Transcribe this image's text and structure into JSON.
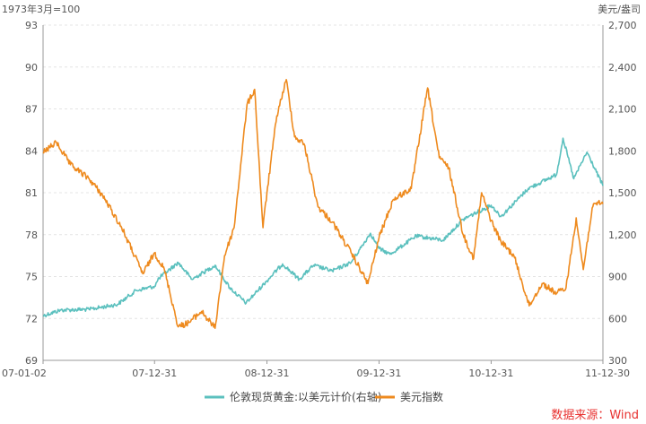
{
  "chart_data": {
    "type": "line",
    "title": "",
    "left_axis_unit": "1973年3月=100",
    "right_axis_unit": "美元/盎司",
    "x_ticks": [
      "07-01-02",
      "07-12-31",
      "08-12-31",
      "09-12-31",
      "10-12-31",
      "11-12-30"
    ],
    "left_ylim": [
      69,
      93
    ],
    "left_ticks": [
      "69",
      "72",
      "75",
      "78",
      "81",
      "84",
      "87",
      "90",
      "93"
    ],
    "right_ylim": [
      300,
      2700
    ],
    "right_ticks": [
      "300",
      "600",
      "900",
      "1,200",
      "1,500",
      "1,800",
      "2,100",
      "2,400",
      "2,700"
    ],
    "grid": true,
    "legend_position": "bottom-center",
    "series": [
      {
        "name": "伦敦现货黄金:以美元计价(右轴)",
        "axis": "right",
        "color": "#5bc0be",
        "points": [
          [
            "2007-01-02",
            620
          ],
          [
            "2007-03-01",
            660
          ],
          [
            "2007-06-01",
            665
          ],
          [
            "2007-09-01",
            700
          ],
          [
            "2007-11-01",
            800
          ],
          [
            "2007-12-31",
            830
          ],
          [
            "2008-01-15",
            890
          ],
          [
            "2008-03-17",
            1000
          ],
          [
            "2008-05-01",
            880
          ],
          [
            "2008-07-15",
            980
          ],
          [
            "2008-09-01",
            820
          ],
          [
            "2008-10-24",
            710
          ],
          [
            "2008-12-31",
            870
          ],
          [
            "2009-02-20",
            990
          ],
          [
            "2009-04-15",
            880
          ],
          [
            "2009-06-01",
            980
          ],
          [
            "2009-08-01",
            940
          ],
          [
            "2009-10-01",
            1000
          ],
          [
            "2009-12-03",
            1210
          ],
          [
            "2009-12-31",
            1100
          ],
          [
            "2010-02-05",
            1060
          ],
          [
            "2010-05-01",
            1190
          ],
          [
            "2010-07-28",
            1160
          ],
          [
            "2010-10-01",
            1310
          ],
          [
            "2010-12-31",
            1410
          ],
          [
            "2011-02-01",
            1330
          ],
          [
            "2011-05-01",
            1530
          ],
          [
            "2011-08-01",
            1630
          ],
          [
            "2011-08-22",
            1890
          ],
          [
            "2011-09-26",
            1600
          ],
          [
            "2011-11-08",
            1790
          ],
          [
            "2011-12-30",
            1550
          ]
        ]
      },
      {
        "name": "美元指数",
        "axis": "left",
        "color": "#ee8a1e",
        "points": [
          [
            "2007-01-02",
            83.9
          ],
          [
            "2007-02-15",
            84.6
          ],
          [
            "2007-04-01",
            83.0
          ],
          [
            "2007-06-01",
            82.0
          ],
          [
            "2007-07-15",
            80.8
          ],
          [
            "2007-09-15",
            78.5
          ],
          [
            "2007-11-23",
            75.2
          ],
          [
            "2007-12-31",
            76.7
          ],
          [
            "2008-02-01",
            75.5
          ],
          [
            "2008-03-17",
            71.4
          ],
          [
            "2008-04-20",
            71.7
          ],
          [
            "2008-06-01",
            72.5
          ],
          [
            "2008-07-15",
            71.3
          ],
          [
            "2008-08-15",
            76.5
          ],
          [
            "2008-09-15",
            78.5
          ],
          [
            "2008-10-27",
            87.3
          ],
          [
            "2008-11-21",
            88.4
          ],
          [
            "2008-12-18",
            78.5
          ],
          [
            "2008-12-31",
            81.0
          ],
          [
            "2009-02-01",
            86.5
          ],
          [
            "2009-03-04",
            89.1
          ],
          [
            "2009-03-31",
            85.0
          ],
          [
            "2009-05-01",
            84.5
          ],
          [
            "2009-06-15",
            80.0
          ],
          [
            "2009-08-01",
            78.9
          ],
          [
            "2009-10-01",
            76.7
          ],
          [
            "2009-11-25",
            74.5
          ],
          [
            "2009-12-31",
            77.8
          ],
          [
            "2010-02-15",
            80.5
          ],
          [
            "2010-04-15",
            81.3
          ],
          [
            "2010-06-07",
            88.5
          ],
          [
            "2010-07-15",
            83.5
          ],
          [
            "2010-08-15",
            82.8
          ],
          [
            "2010-10-01",
            78.0
          ],
          [
            "2010-11-04",
            76.3
          ],
          [
            "2010-11-30",
            81.0
          ],
          [
            "2010-12-31",
            79.0
          ],
          [
            "2011-02-01",
            77.5
          ],
          [
            "2011-03-15",
            76.5
          ],
          [
            "2011-05-04",
            72.9
          ],
          [
            "2011-06-15",
            74.5
          ],
          [
            "2011-08-01",
            73.8
          ],
          [
            "2011-09-01",
            74.2
          ],
          [
            "2011-10-04",
            79.2
          ],
          [
            "2011-10-27",
            75.5
          ],
          [
            "2011-11-25",
            79.9
          ],
          [
            "2011-12-15",
            80.3
          ],
          [
            "2011-12-30",
            80.2
          ]
        ]
      }
    ]
  },
  "source_text": "数据来源：Wind"
}
